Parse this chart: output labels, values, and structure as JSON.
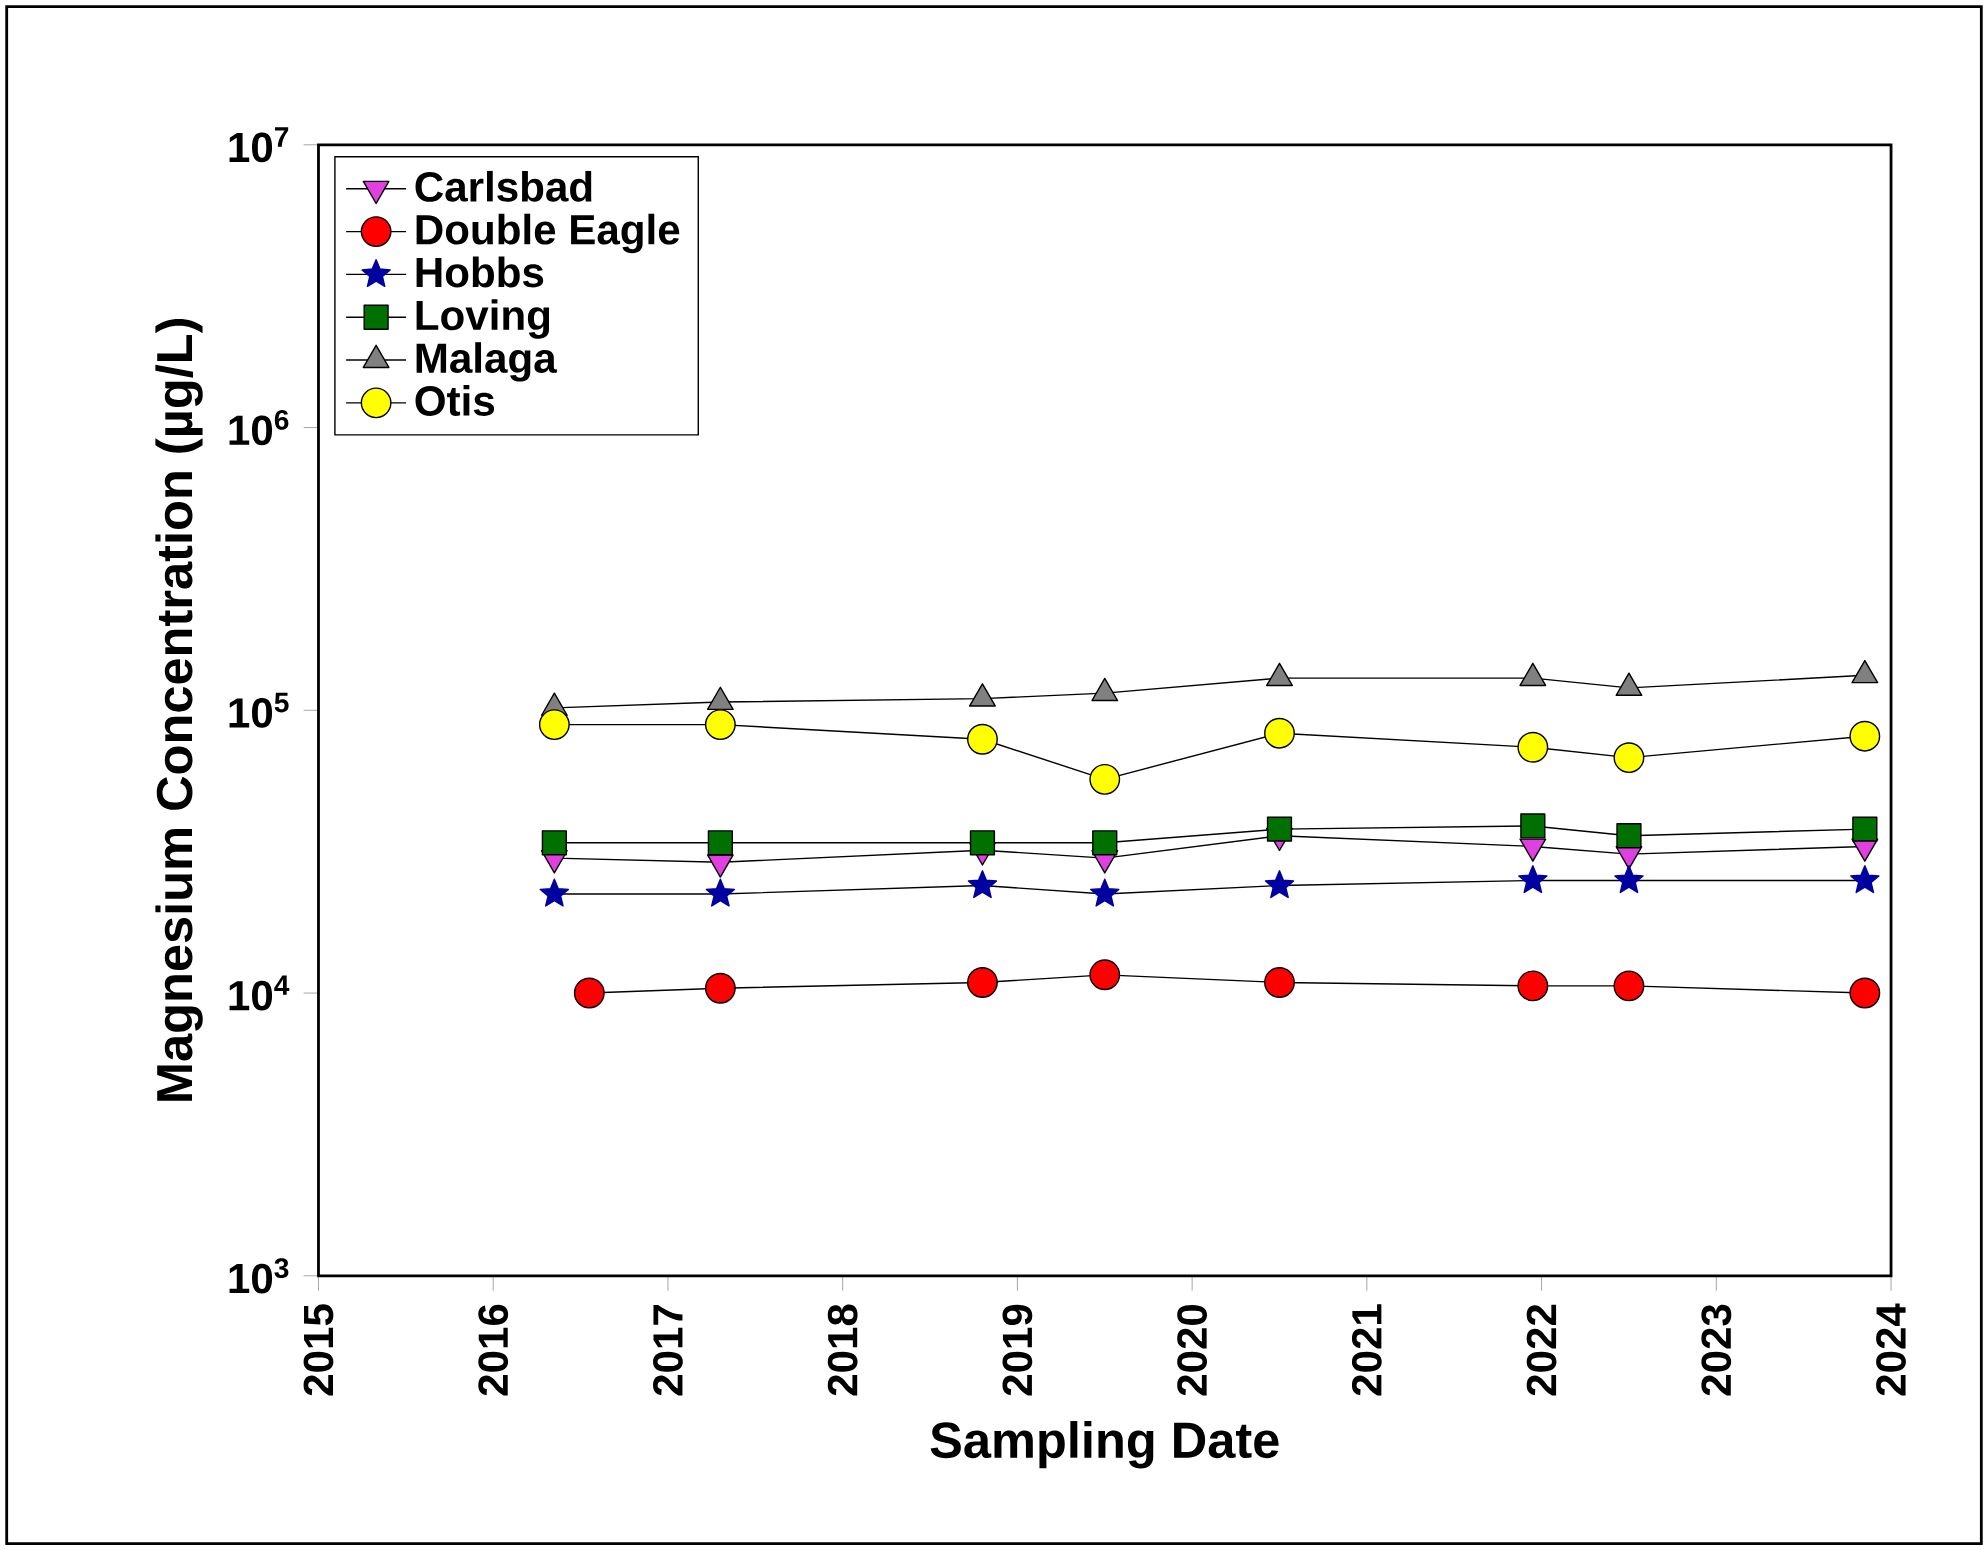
{
  "chart_data": {
    "type": "line",
    "xlabel": "Sampling Date",
    "ylabel": "Magnesium Concentration (µg/L)",
    "log": "y",
    "xlim": [
      2015,
      2024
    ],
    "xticks": [
      2015,
      2016,
      2017,
      2018,
      2019,
      2020,
      2021,
      2022,
      2023,
      2024
    ],
    "ylim": [
      1000,
      10000000
    ],
    "yticks": [
      {
        "value": 1000,
        "label": "10$^{3}$"
      },
      {
        "value": 10000,
        "label": "10$^{4}$"
      },
      {
        "value": 100000,
        "label": "10$^{5}$"
      },
      {
        "value": 1000000,
        "label": "10$^{6}$"
      },
      {
        "value": 10000000,
        "label": "10$^{7}$"
      }
    ],
    "grid": false,
    "legend": "top left",
    "line_style": "solid",
    "x": [
      2016.35,
      2017.3,
      2018.8,
      2019.5,
      2020.5,
      2021.95,
      2022.5,
      2023.85
    ],
    "series": [
      {
        "name": "Carlsbad",
        "color": "#e040e0",
        "marker": "triangle_down",
        "values": [
          30000,
          29000,
          32000,
          30000,
          36000,
          33000,
          31000,
          33000
        ]
      },
      {
        "name": "Double Eagle",
        "color": "#ff0000",
        "marker": "circle",
        "x": [
          2016.55,
          2017.3,
          2018.8,
          2019.5,
          2020.5,
          2021.95,
          2022.5,
          2023.85
        ],
        "values": [
          10000,
          10400,
          10900,
          11600,
          10900,
          10600,
          10600,
          10000
        ]
      },
      {
        "name": "Hobbs",
        "color": "#0000a0",
        "marker": "star",
        "values": [
          22400,
          22400,
          24000,
          22400,
          24000,
          25000,
          25000,
          25000
        ]
      },
      {
        "name": "Loving",
        "color": "#007000",
        "marker": "square",
        "values": [
          34000,
          34000,
          34000,
          34000,
          38000,
          39000,
          36000,
          38000
        ]
      },
      {
        "name": "Malaga",
        "color": "#808080",
        "marker": "triangle",
        "values": [
          102000,
          107000,
          110000,
          115000,
          130000,
          130000,
          120000,
          133000
        ]
      },
      {
        "name": "Otis",
        "color": "#ffff00",
        "marker": "circle",
        "values": [
          89000,
          89000,
          79000,
          57000,
          83000,
          74000,
          68000,
          81000
        ]
      }
    ]
  }
}
